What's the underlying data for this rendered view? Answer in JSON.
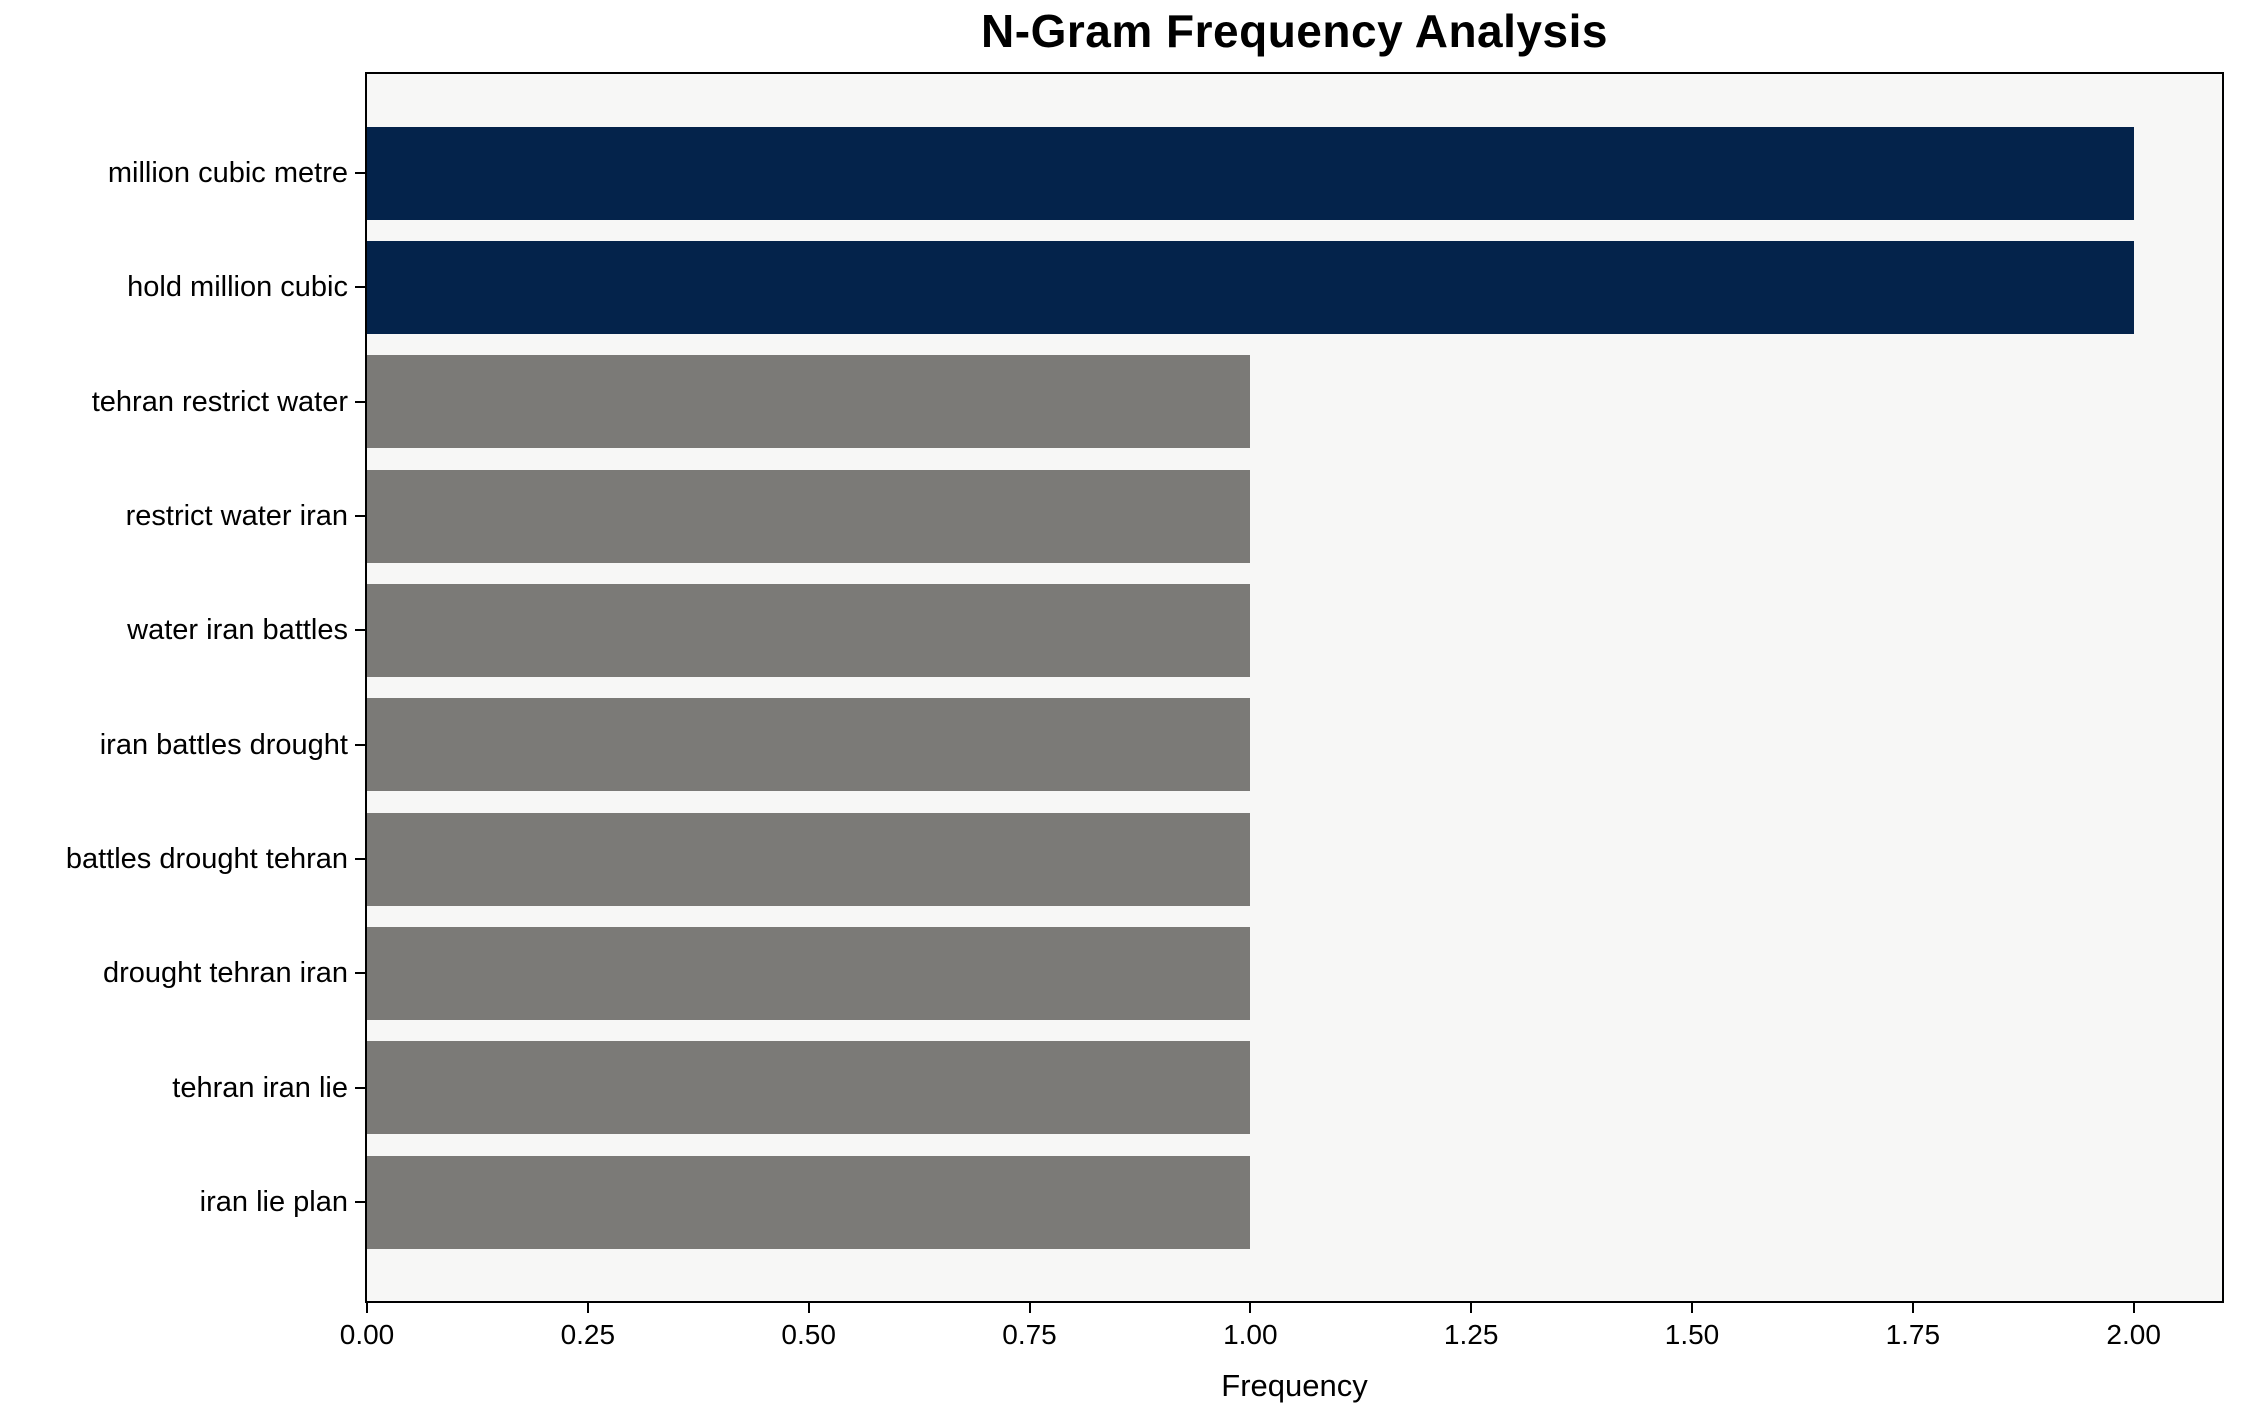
{
  "chart_data": {
    "type": "bar",
    "orientation": "horizontal",
    "title": "N-Gram Frequency Analysis",
    "xlabel": "Frequency",
    "ylabel": "",
    "categories": [
      "million cubic metre",
      "hold million cubic",
      "tehran restrict water",
      "restrict water iran",
      "water iran battles",
      "iran battles drought",
      "battles drought tehran",
      "drought tehran iran",
      "tehran iran lie",
      "iran lie plan"
    ],
    "values": [
      2,
      2,
      1,
      1,
      1,
      1,
      1,
      1,
      1,
      1
    ],
    "bar_colors": [
      "#04234b",
      "#04234b",
      "#7b7a77",
      "#7b7a77",
      "#7b7a77",
      "#7b7a77",
      "#7b7a77",
      "#7b7a77",
      "#7b7a77",
      "#7b7a77"
    ],
    "xlim": [
      0,
      2.1
    ],
    "xtick_values": [
      0,
      0.25,
      0.5,
      0.75,
      1.0,
      1.25,
      1.5,
      1.75,
      2.0
    ],
    "xtick_labels": [
      "0.00",
      "0.25",
      "0.50",
      "0.75",
      "1.00",
      "1.25",
      "1.50",
      "1.75",
      "2.00"
    ],
    "grid": false,
    "legend": null
  },
  "styles": {
    "figure_bg": "#ffffff",
    "plot_bg": "#f7f7f6",
    "axis_color": "#000000",
    "text_color": "#000000",
    "highlight_color": "#04234b",
    "base_color": "#7b7a77"
  }
}
